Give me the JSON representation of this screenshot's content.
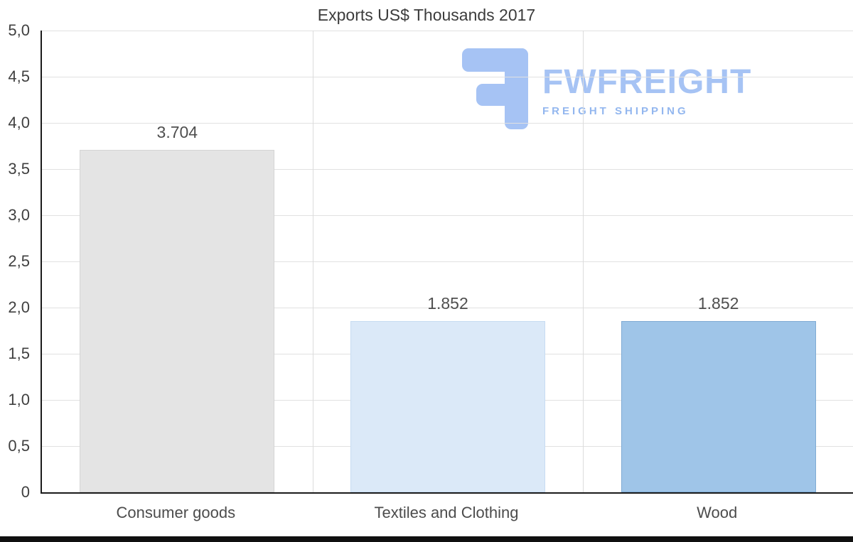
{
  "chart_data": {
    "type": "bar",
    "title": "Exports US$ Thousands 2017",
    "categories": [
      "Consumer goods",
      "Textiles and Clothing",
      "Wood"
    ],
    "values": [
      3.704,
      1.852,
      1.852
    ],
    "value_labels": [
      "3.704",
      "1.852",
      "1.852"
    ],
    "ylim": [
      0,
      5
    ],
    "y_ticks": [
      "5,0",
      "4,5",
      "4,0",
      "3,5",
      "3,0",
      "2,5",
      "2,0",
      "1,5",
      "1,0",
      "0,5",
      "0"
    ],
    "xlabel": "",
    "ylabel": "",
    "legend": "none",
    "grid": "horizontal gridlines every 0.5 plus vertical category separators",
    "bar_colors": [
      "#e4e4e4",
      "#dbe9f8",
      "#9fc5e8"
    ],
    "bar_borders": [
      "#d4d4d4",
      "#c7dcf2",
      "#7fabd4"
    ],
    "axis_color": "#1b1b1b",
    "gridline_color": "#e1e1e1"
  },
  "logo": {
    "brand": "FWFREIGHT",
    "tagline": "FREIGHT SHIPPING",
    "color": "#a6c3f4"
  }
}
